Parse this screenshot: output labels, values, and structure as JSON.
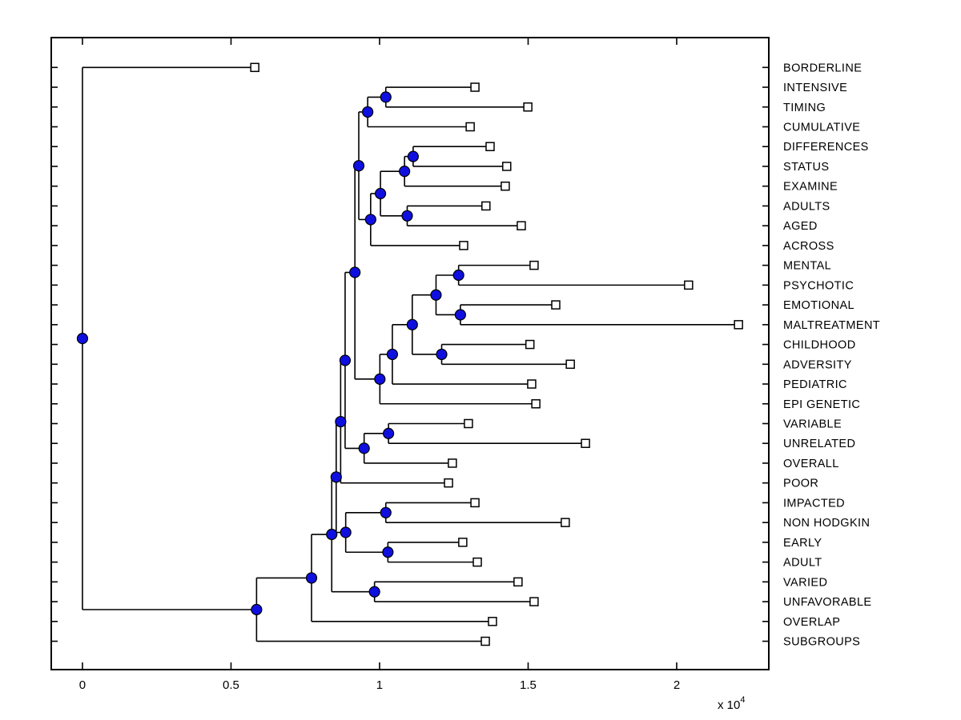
{
  "figure": {
    "background": "#ffffff",
    "axes_exponent_label": "x 10",
    "axes_exponent_power": "4"
  },
  "chart_data": {
    "type": "dendrogram",
    "subtype": "phylogenetic-tree",
    "orientation": "left-to-right",
    "grid": false,
    "legend": false,
    "x_axis": {
      "ticks": [
        0,
        0.5,
        1,
        1.5,
        2
      ],
      "tick_labels": [
        "0",
        "0.5",
        "1",
        "1.5",
        "2"
      ],
      "unit_exponent": "x 10^4",
      "xlim": [
        -0.105,
        2.31
      ]
    },
    "colors": {
      "line": "#000000",
      "branch_node_fill": "#0f0fe0",
      "branch_node_edge": "#000000",
      "leaf_node_fill": "#ffffff",
      "leaf_node_edge": "#000000"
    },
    "leaves": [
      {
        "id": "L0",
        "label": "BORDERLINE",
        "x": 0.58
      },
      {
        "id": "L1",
        "label": "INTENSIVE",
        "x": 1.321
      },
      {
        "id": "L2",
        "label": "TIMING",
        "x": 1.499
      },
      {
        "id": "L3",
        "label": "CUMULATIVE",
        "x": 1.305
      },
      {
        "id": "L4",
        "label": "DIFFERENCES",
        "x": 1.372
      },
      {
        "id": "L5",
        "label": "STATUS",
        "x": 1.428
      },
      {
        "id": "L6",
        "label": "EXAMINE",
        "x": 1.423
      },
      {
        "id": "L7",
        "label": "ADULTS",
        "x": 1.358
      },
      {
        "id": "L8",
        "label": "AGED",
        "x": 1.477
      },
      {
        "id": "L9",
        "label": "ACROSS",
        "x": 1.283
      },
      {
        "id": "L10",
        "label": "MENTAL",
        "x": 1.52
      },
      {
        "id": "L11",
        "label": "PSYCHOTIC",
        "x": 2.04
      },
      {
        "id": "L12",
        "label": "EMOTIONAL",
        "x": 1.593
      },
      {
        "id": "L13",
        "label": "MALTREATMENT",
        "x": 2.208
      },
      {
        "id": "L14",
        "label": "CHILDHOOD",
        "x": 1.506
      },
      {
        "id": "L15",
        "label": "ADVERSITY",
        "x": 1.642
      },
      {
        "id": "L16",
        "label": "PEDIATRIC",
        "x": 1.512
      },
      {
        "id": "L17",
        "label": "EPI GENETIC",
        "x": 1.526
      },
      {
        "id": "L18",
        "label": "VARIABLE",
        "x": 1.299
      },
      {
        "id": "L19",
        "label": "UNRELATED",
        "x": 1.693
      },
      {
        "id": "L20",
        "label": "OVERALL",
        "x": 1.245
      },
      {
        "id": "L21",
        "label": "POOR",
        "x": 1.232
      },
      {
        "id": "L22",
        "label": "IMPACTED",
        "x": 1.321
      },
      {
        "id": "L23",
        "label": "NON HODGKIN",
        "x": 1.625
      },
      {
        "id": "L24",
        "label": "EARLY",
        "x": 1.28
      },
      {
        "id": "L25",
        "label": "ADULT",
        "x": 1.329
      },
      {
        "id": "L26",
        "label": "VARIED",
        "x": 1.466
      },
      {
        "id": "L27",
        "label": "UNFAVORABLE",
        "x": 1.52
      },
      {
        "id": "L28",
        "label": "OVERLAP",
        "x": 1.38
      },
      {
        "id": "L29",
        "label": "SUBGROUPS",
        "x": 1.356
      }
    ],
    "branches": [
      {
        "id": "ROOT",
        "x": 0.0,
        "children": [
          "L0",
          "R2"
        ]
      },
      {
        "id": "R2",
        "x": 0.586,
        "children": [
          "C",
          "L29"
        ]
      },
      {
        "id": "C",
        "x": 0.771,
        "children": [
          "D1",
          "L28"
        ]
      },
      {
        "id": "D1",
        "x": 0.839,
        "children": [
          "M",
          "VU"
        ]
      },
      {
        "id": "M",
        "x": 0.854,
        "children": [
          "Q",
          "G"
        ]
      },
      {
        "id": "Q",
        "x": 0.869,
        "children": [
          "P",
          "L21"
        ]
      },
      {
        "id": "P",
        "x": 0.884,
        "children": [
          "M1",
          "V1"
        ]
      },
      {
        "id": "M1",
        "x": 0.917,
        "children": [
          "T3",
          "CAPE"
        ]
      },
      {
        "id": "T3",
        "x": 0.93,
        "children": [
          "T2",
          "T8"
        ]
      },
      {
        "id": "T2",
        "x": 0.96,
        "children": [
          "T1",
          "L3"
        ]
      },
      {
        "id": "T1",
        "x": 1.021,
        "children": [
          "L1",
          "L2"
        ]
      },
      {
        "id": "T8",
        "x": 0.97,
        "children": [
          "T6",
          "L9"
        ]
      },
      {
        "id": "T6",
        "x": 1.003,
        "children": [
          "T5",
          "T7"
        ]
      },
      {
        "id": "T5",
        "x": 1.084,
        "children": [
          "T4",
          "L6"
        ]
      },
      {
        "id": "T4",
        "x": 1.113,
        "children": [
          "L4",
          "L5"
        ]
      },
      {
        "id": "T7",
        "x": 1.093,
        "children": [
          "L7",
          "L8"
        ]
      },
      {
        "id": "CAPE",
        "x": 1.001,
        "children": [
          "X",
          "L17"
        ]
      },
      {
        "id": "X",
        "x": 1.043,
        "children": [
          "MID1",
          "L16"
        ]
      },
      {
        "id": "MID1",
        "x": 1.11,
        "children": [
          "N3",
          "CHAD"
        ]
      },
      {
        "id": "N3",
        "x": 1.19,
        "children": [
          "N4",
          "N5"
        ]
      },
      {
        "id": "N4",
        "x": 1.266,
        "children": [
          "L10",
          "L11"
        ]
      },
      {
        "id": "N5",
        "x": 1.272,
        "children": [
          "L12",
          "L13"
        ]
      },
      {
        "id": "CHAD",
        "x": 1.209,
        "children": [
          "L14",
          "L15"
        ]
      },
      {
        "id": "V1",
        "x": 0.948,
        "children": [
          "VARUN",
          "L20"
        ]
      },
      {
        "id": "VARUN",
        "x": 1.03,
        "children": [
          "L18",
          "L19"
        ]
      },
      {
        "id": "G",
        "x": 0.886,
        "children": [
          "IN",
          "EA"
        ]
      },
      {
        "id": "IN",
        "x": 1.021,
        "children": [
          "L22",
          "L23"
        ]
      },
      {
        "id": "EA",
        "x": 1.028,
        "children": [
          "L24",
          "L25"
        ]
      },
      {
        "id": "VU",
        "x": 0.983,
        "children": [
          "L26",
          "L27"
        ]
      }
    ]
  }
}
